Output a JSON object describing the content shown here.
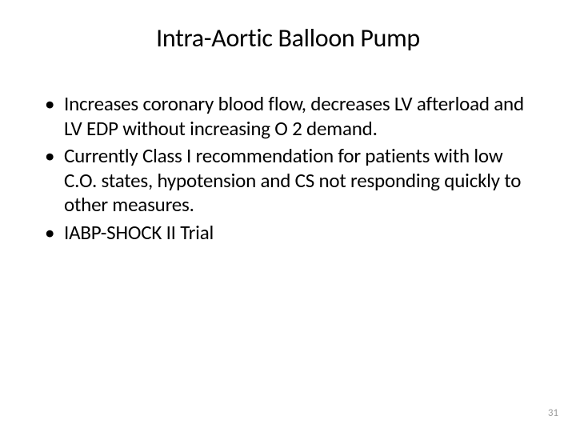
{
  "slide": {
    "title": "Intra-Aortic Balloon Pump",
    "bullets": [
      "Increases coronary blood flow, decreases LV afterload and LV EDP without increasing O 2 demand.",
      "Currently Class I recommendation for patients with low C.O. states, hypotension and CS not responding quickly to other measures.",
      "IABP-SHOCK II Trial"
    ],
    "page_number": "31"
  },
  "styling": {
    "background_color": "#ffffff",
    "title_fontsize": 32,
    "title_color": "#000000",
    "body_fontsize": 25,
    "body_color": "#000000",
    "page_number_color": "#9e9e9e",
    "page_number_fontsize": 13,
    "font_family": "Calibri"
  }
}
